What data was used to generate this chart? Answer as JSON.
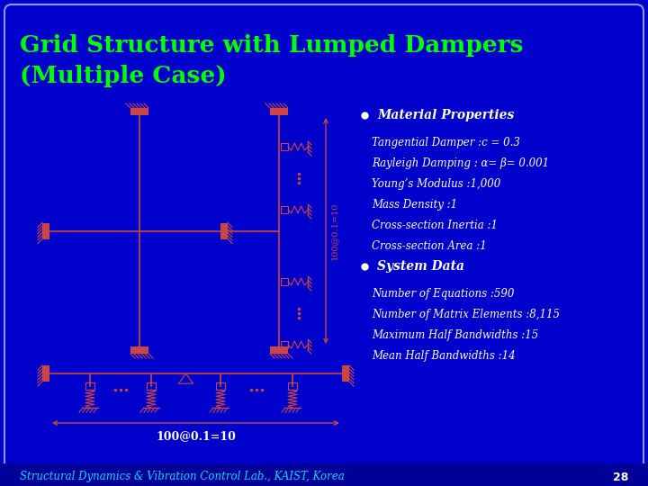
{
  "title_line1": "Grid Structure with Lumped Dampers",
  "title_line2": "(Multiple Case)",
  "title_color": "#00FF00",
  "background_color": "#0000CC",
  "border_color": "#8899FF",
  "text_color": "#FFFFFF",
  "diagram_color": "#CC4444",
  "bullet_color": "#FFFFFF",
  "footer_text": "Structural Dynamics & Vibration Control Lab., KAIST, Korea",
  "footer_page": "28",
  "material_header": "Material Properties",
  "material_items": [
    "Tangential Damper :c = 0.3",
    "Rayleigh Damping : α= β= 0.001",
    "Young’s Modulus :1,000",
    "Mass Density :1",
    "Cross-section Inertia :1",
    "Cross-section Area :1"
  ],
  "system_header": "System Data",
  "system_items": [
    "Number of Equations :590",
    "Number of Matrix Elements :8,115",
    "Maximum Half Bandwidths :15",
    "Mean Half Bandwidths :14"
  ],
  "label_vertical": "100@0.1=10",
  "label_horizontal": "100@0.1=10"
}
